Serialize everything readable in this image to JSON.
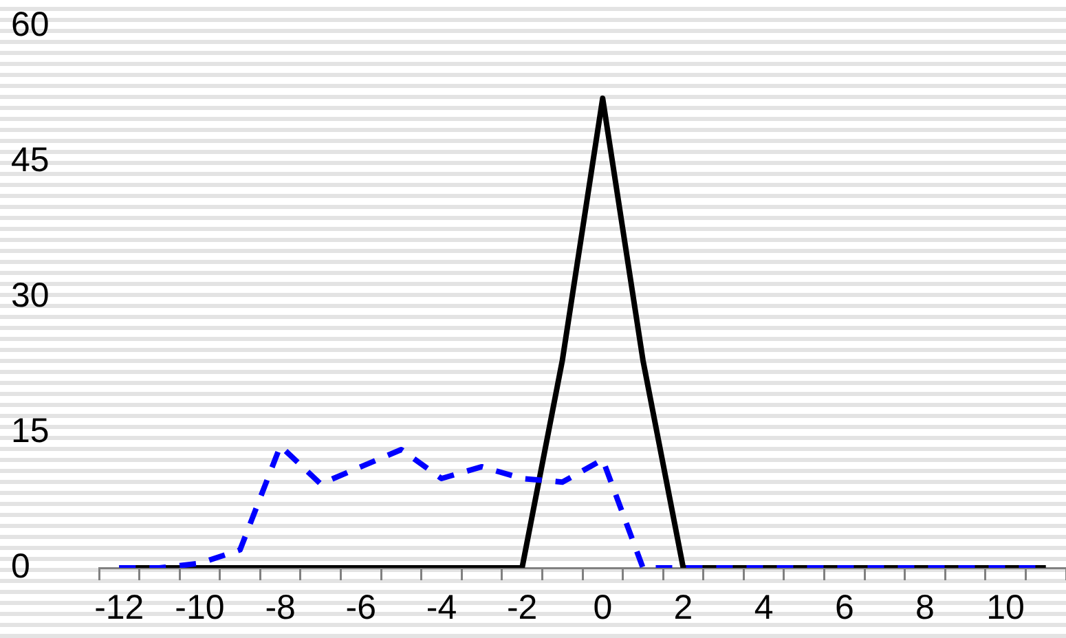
{
  "chart_data": {
    "type": "line",
    "categories": [
      "-12",
      null,
      "-10",
      null,
      "-8",
      null,
      "-6",
      null,
      "-4",
      null,
      "-2",
      null,
      "0",
      null,
      "2",
      null,
      "4",
      null,
      "6",
      null,
      "8",
      null,
      "10",
      null
    ],
    "series": [
      {
        "color": "#0000ff",
        "line_style": "dashed",
        "values": [
          0,
          0,
          0.5,
          2,
          13.5,
          9.3,
          11.2,
          13.1,
          9.9,
          11.2,
          9.9,
          9.5,
          12,
          0,
          0,
          0,
          0,
          0,
          0,
          0,
          0,
          0,
          0,
          0
        ]
      },
      {
        "color": "#000000",
        "line_style": "solid",
        "values": [
          0,
          0,
          0,
          0,
          0,
          0,
          0,
          0,
          0,
          0,
          0,
          23,
          52,
          23,
          0,
          0,
          0,
          0,
          0,
          0,
          0,
          0,
          0,
          0
        ]
      }
    ],
    "ylim": [
      0,
      60
    ],
    "yticks": [
      0,
      15,
      30,
      45,
      60
    ],
    "grid": false,
    "legend": false,
    "marker": "none"
  }
}
